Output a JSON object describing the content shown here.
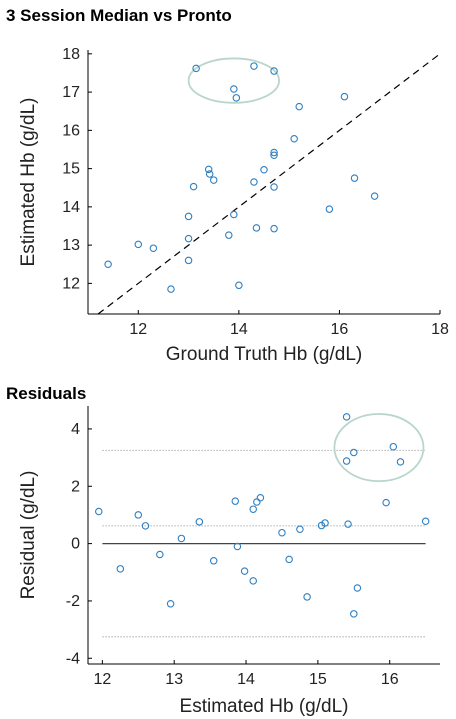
{
  "chart_data": [
    {
      "type": "scatter",
      "title": "3 Session Median vs Pronto",
      "xlabel": "Ground Truth Hb (g/dL)",
      "ylabel": "Estimated Hb (g/dL)",
      "xlim": [
        11,
        18
      ],
      "ylim": [
        11.2,
        18.1
      ],
      "xticks": [
        12,
        14,
        16,
        18
      ],
      "yticks": [
        12,
        13,
        14,
        15,
        16,
        17,
        18
      ],
      "grid": false,
      "marker_color": "#2f7fc1",
      "identity_line": true,
      "highlight_ellipse": {
        "cx": 13.9,
        "cy": 17.3,
        "rx": 0.9,
        "ry": 0.58,
        "color": "#b9d6c8"
      },
      "points": [
        {
          "x": 11.4,
          "y": 12.5
        },
        {
          "x": 12.0,
          "y": 13.02
        },
        {
          "x": 12.3,
          "y": 12.92
        },
        {
          "x": 12.65,
          "y": 11.85
        },
        {
          "x": 13.0,
          "y": 13.75
        },
        {
          "x": 13.0,
          "y": 13.17
        },
        {
          "x": 13.0,
          "y": 12.6
        },
        {
          "x": 13.1,
          "y": 14.53
        },
        {
          "x": 13.15,
          "y": 17.62
        },
        {
          "x": 13.4,
          "y": 14.98
        },
        {
          "x": 13.42,
          "y": 14.86
        },
        {
          "x": 13.5,
          "y": 14.7
        },
        {
          "x": 13.8,
          "y": 13.26
        },
        {
          "x": 13.9,
          "y": 13.8
        },
        {
          "x": 13.9,
          "y": 17.08
        },
        {
          "x": 13.95,
          "y": 16.85
        },
        {
          "x": 14.0,
          "y": 11.95
        },
        {
          "x": 14.3,
          "y": 17.68
        },
        {
          "x": 14.3,
          "y": 14.65
        },
        {
          "x": 14.35,
          "y": 13.45
        },
        {
          "x": 14.5,
          "y": 14.97
        },
        {
          "x": 14.7,
          "y": 15.42
        },
        {
          "x": 14.7,
          "y": 15.35
        },
        {
          "x": 14.7,
          "y": 14.52
        },
        {
          "x": 14.7,
          "y": 13.43
        },
        {
          "x": 14.7,
          "y": 17.55
        },
        {
          "x": 15.1,
          "y": 15.78
        },
        {
          "x": 15.2,
          "y": 16.62
        },
        {
          "x": 15.8,
          "y": 13.94
        },
        {
          "x": 16.1,
          "y": 16.88
        },
        {
          "x": 16.3,
          "y": 14.75
        },
        {
          "x": 16.7,
          "y": 14.28
        }
      ]
    },
    {
      "type": "scatter",
      "title": "Residuals",
      "xlabel": "Estimated Hb (g/dL)",
      "ylabel": "Residual (g/dL)",
      "xlim": [
        11.8,
        16.7
      ],
      "ylim": [
        -4.2,
        4.8
      ],
      "xticks": [
        12,
        13,
        14,
        15,
        16
      ],
      "yticks": [
        -4,
        -2,
        0,
        2,
        4
      ],
      "grid": false,
      "marker_color": "#2f7fc1",
      "reference_lines": [
        {
          "y": 0,
          "style": "solid",
          "color": "#444444"
        },
        {
          "y": 0.62,
          "style": "dotted",
          "color": "#bbbbbb"
        },
        {
          "y": 3.25,
          "style": "dotted",
          "color": "#bbbbbb"
        },
        {
          "y": -3.25,
          "style": "dotted",
          "color": "#bbbbbb"
        }
      ],
      "highlight_ellipse": {
        "cx": 15.85,
        "cy": 3.35,
        "rx": 0.62,
        "ry": 1.17,
        "color": "#b9d6c8"
      },
      "points": [
        {
          "x": 11.95,
          "y": 1.12
        },
        {
          "x": 12.25,
          "y": -0.88
        },
        {
          "x": 12.5,
          "y": 1.0
        },
        {
          "x": 12.6,
          "y": 0.62
        },
        {
          "x": 12.8,
          "y": -0.38
        },
        {
          "x": 12.95,
          "y": -2.1
        },
        {
          "x": 13.1,
          "y": 0.18
        },
        {
          "x": 13.35,
          "y": 0.76
        },
        {
          "x": 13.55,
          "y": -0.6
        },
        {
          "x": 13.85,
          "y": 1.48
        },
        {
          "x": 13.88,
          "y": -0.1
        },
        {
          "x": 13.98,
          "y": -0.96
        },
        {
          "x": 14.1,
          "y": -1.3
        },
        {
          "x": 14.1,
          "y": 1.2
        },
        {
          "x": 14.15,
          "y": 1.45
        },
        {
          "x": 14.2,
          "y": 1.6
        },
        {
          "x": 14.5,
          "y": 0.38
        },
        {
          "x": 14.6,
          "y": -0.55
        },
        {
          "x": 14.75,
          "y": 0.5
        },
        {
          "x": 14.85,
          "y": -1.86
        },
        {
          "x": 15.05,
          "y": 0.63
        },
        {
          "x": 15.1,
          "y": 0.72
        },
        {
          "x": 15.4,
          "y": 4.42
        },
        {
          "x": 15.4,
          "y": 2.88
        },
        {
          "x": 15.42,
          "y": 0.68
        },
        {
          "x": 15.5,
          "y": 3.18
        },
        {
          "x": 15.5,
          "y": -2.45
        },
        {
          "x": 15.55,
          "y": -1.55
        },
        {
          "x": 15.95,
          "y": 1.43
        },
        {
          "x": 16.05,
          "y": 3.38
        },
        {
          "x": 16.15,
          "y": 2.85
        },
        {
          "x": 16.5,
          "y": 0.78
        }
      ]
    }
  ]
}
